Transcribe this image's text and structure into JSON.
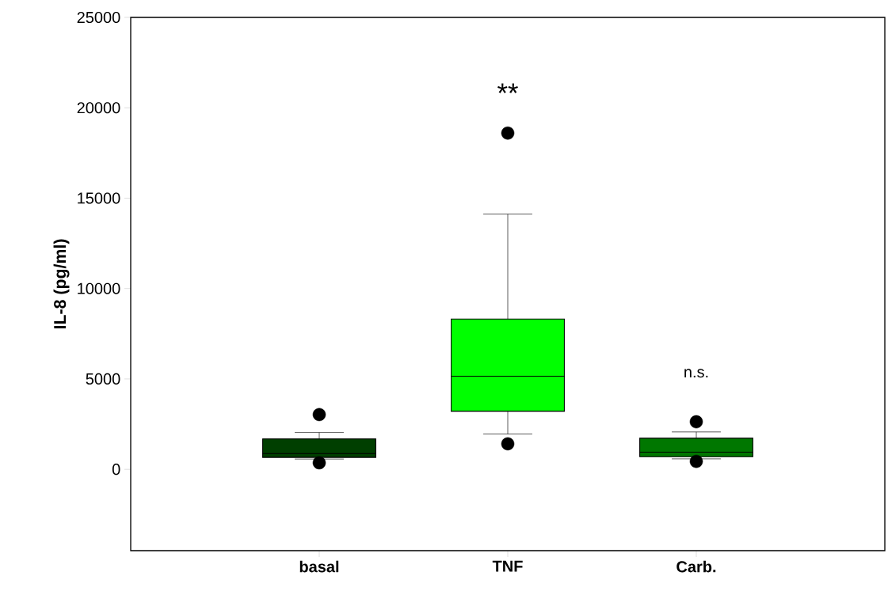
{
  "chart_data": {
    "type": "box",
    "ylabel": "IL-8 (pg/ml)",
    "categories": [
      "basal",
      "TNF",
      "Carb."
    ],
    "colors": [
      "#003f00",
      "#00ff00",
      "#007700"
    ],
    "boxes": [
      {
        "low": 570,
        "q1": 660,
        "median": 875,
        "q3": 1680,
        "high": 2040,
        "outliers": [
          3030,
          360
        ]
      },
      {
        "low": 1950,
        "q1": 3210,
        "median": 5150,
        "q3": 8310,
        "high": 14120,
        "outliers": [
          18600,
          1410
        ]
      },
      {
        "low": 580,
        "q1": 700,
        "median": 950,
        "q3": 1720,
        "high": 2070,
        "outliers": [
          2630,
          440
        ]
      }
    ],
    "ylim": [
      -4500,
      25000
    ],
    "yticks": [
      0,
      5000,
      10000,
      15000,
      20000,
      25000
    ],
    "annotations": [
      "**",
      "n.s."
    ]
  }
}
